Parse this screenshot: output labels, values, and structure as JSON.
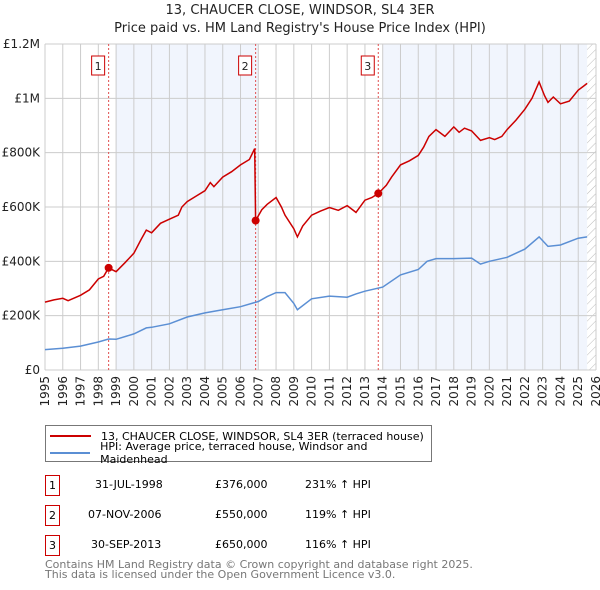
{
  "header": {
    "title": "13, CHAUCER CLOSE, WINDSOR, SL4 3ER",
    "subtitle": "Price paid vs. HM Land Registry's House Price Index (HPI)"
  },
  "chart_data": {
    "type": "line",
    "title": "13, CHAUCER CLOSE, WINDSOR, SL4 3ER",
    "subtitle": "Price paid vs. HM Land Registry's House Price Index (HPI)",
    "xlim": [
      1995,
      2026
    ],
    "ylim": [
      0,
      1200000
    ],
    "yticks": [
      {
        "v": 0,
        "label": "£0"
      },
      {
        "v": 200000,
        "label": "£200K"
      },
      {
        "v": 400000,
        "label": "£400K"
      },
      {
        "v": 600000,
        "label": "£600K"
      },
      {
        "v": 800000,
        "label": "£800K"
      },
      {
        "v": 1000000,
        "label": "£1M"
      },
      {
        "v": 1200000,
        "label": "£1.2M"
      }
    ],
    "xticks": [
      "1995",
      "1996",
      "1997",
      "1998",
      "1999",
      "2000",
      "2001",
      "2002",
      "2003",
      "2004",
      "2005",
      "2006",
      "2007",
      "2008",
      "2009",
      "2010",
      "2011",
      "2012",
      "2013",
      "2014",
      "2015",
      "2016",
      "2017",
      "2018",
      "2019",
      "2020",
      "2021",
      "2022",
      "2023",
      "2024",
      "2025",
      "2026"
    ],
    "grid": true,
    "shaded_ranges": [
      [
        1999,
        2007
      ],
      [
        2014,
        2025.5
      ]
    ],
    "hatched_from": 2025.5,
    "series": [
      {
        "name": "13, CHAUCER CLOSE, WINDSOR, SL4 3ER (terraced house)",
        "color": "#cc0000",
        "x": [
          1995,
          1995.5,
          1996,
          1996.3,
          1997,
          1997.5,
          1998,
          1998.3,
          1998.58,
          1999,
          1999.5,
          2000,
          2000.4,
          2000.7,
          2001,
          2001.5,
          2002,
          2002.5,
          2002.7,
          2003,
          2003.5,
          2004,
          2004.3,
          2004.5,
          2005,
          2005.5,
          2006,
          2006.5,
          2006.8,
          2006.85,
          2007.2,
          2007.5,
          2008,
          2008.3,
          2008.5,
          2009,
          2009.2,
          2009.5,
          2010,
          2010.5,
          2011,
          2011.5,
          2012,
          2012.5,
          2013,
          2013.4,
          2013.75,
          2014.2,
          2014.5,
          2015,
          2015.5,
          2016,
          2016.3,
          2016.6,
          2017,
          2017.5,
          2018,
          2018.3,
          2018.6,
          2019,
          2019.5,
          2020,
          2020.3,
          2020.7,
          2021,
          2021.5,
          2022,
          2022.4,
          2022.8,
          2023.1,
          2023.3,
          2023.6,
          2024,
          2024.5,
          2025,
          2025.3,
          2025.5
        ],
        "y": [
          250000,
          258000,
          264000,
          255000,
          275000,
          295000,
          335000,
          345000,
          376000,
          362000,
          395000,
          430000,
          480000,
          515000,
          505000,
          540000,
          555000,
          570000,
          600000,
          620000,
          640000,
          660000,
          690000,
          675000,
          710000,
          730000,
          755000,
          775000,
          815000,
          550000,
          590000,
          610000,
          635000,
          600000,
          570000,
          520000,
          490000,
          530000,
          570000,
          585000,
          598000,
          588000,
          605000,
          580000,
          625000,
          635000,
          650000,
          680000,
          710000,
          755000,
          770000,
          790000,
          820000,
          860000,
          885000,
          860000,
          895000,
          875000,
          890000,
          880000,
          845000,
          855000,
          848000,
          860000,
          885000,
          920000,
          960000,
          1000000,
          1060000,
          1010000,
          985000,
          1005000,
          980000,
          990000,
          1030000,
          1045000,
          1055000
        ]
      },
      {
        "name": "HPI: Average price, terraced house, Windsor and Maidenhead",
        "color": "#5b8fd4",
        "x": [
          1995,
          1996,
          1997,
          1998,
          1998.58,
          1999,
          2000,
          2000.7,
          2001,
          2002,
          2003,
          2004,
          2005,
          2006,
          2007,
          2007.5,
          2008,
          2008.5,
          2009,
          2009.2,
          2010,
          2011,
          2012,
          2012.5,
          2013,
          2014,
          2015,
          2016,
          2016.5,
          2017,
          2018,
          2019,
          2019.5,
          2020,
          2021,
          2022,
          2022.8,
          2023.3,
          2024,
          2025,
          2025.5
        ],
        "y": [
          75000,
          80000,
          88000,
          103000,
          114000,
          113000,
          133000,
          155000,
          157000,
          170000,
          195000,
          210000,
          222000,
          233000,
          252000,
          270000,
          285000,
          285000,
          245000,
          222000,
          262000,
          272000,
          268000,
          280000,
          290000,
          305000,
          350000,
          370000,
          400000,
          410000,
          410000,
          412000,
          390000,
          400000,
          415000,
          445000,
          490000,
          455000,
          460000,
          485000,
          490000
        ]
      }
    ],
    "sales": [
      {
        "n": "1",
        "x": 1998.58,
        "y": 376000
      },
      {
        "n": "2",
        "x": 2006.85,
        "y": 550000
      },
      {
        "n": "3",
        "x": 2013.75,
        "y": 650000
      }
    ]
  },
  "legend": {
    "items": [
      {
        "label": "13, CHAUCER CLOSE, WINDSOR, SL4 3ER (terraced house)",
        "color": "#cc0000"
      },
      {
        "label": "HPI: Average price, terraced house, Windsor and Maidenhead",
        "color": "#5b8fd4"
      }
    ]
  },
  "transactions": [
    {
      "n": "1",
      "date": "31-JUL-1998",
      "price": "£376,000",
      "hpi": "231% ↑ HPI"
    },
    {
      "n": "2",
      "date": "07-NOV-2006",
      "price": "£550,000",
      "hpi": "119% ↑ HPI"
    },
    {
      "n": "3",
      "date": "30-SEP-2013",
      "price": "£650,000",
      "hpi": "116% ↑ HPI"
    }
  ],
  "footer": {
    "line1": "Contains HM Land Registry data © Crown copyright and database right 2025.",
    "line2": "This data is licensed under the Open Government Licence v3.0."
  }
}
